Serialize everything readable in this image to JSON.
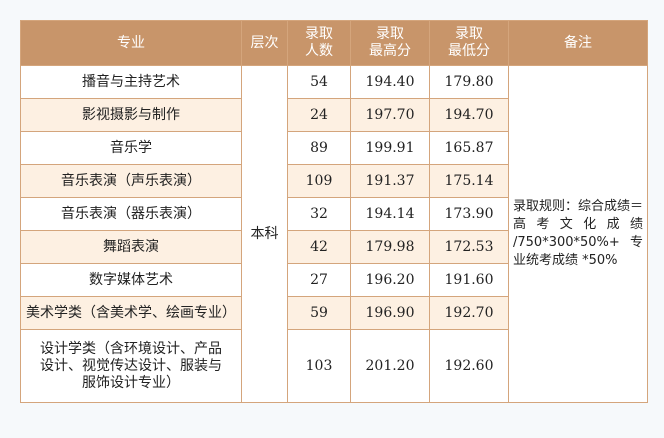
{
  "headers": [
    "专业",
    "层次",
    "录取人数",
    "录取最高分",
    "录取最低分",
    "备注"
  ],
  "header_lines": {
    "count": [
      "录取",
      "人数"
    ],
    "max": [
      "录取",
      "最高分"
    ],
    "min": [
      "录取",
      "最低分"
    ]
  },
  "level": "本科",
  "note": "录取规则：综合成绩＝高考文化成绩 /750*300*50%+专业统考成绩 *50%",
  "rows": [
    {
      "major": "播音与主持艺术",
      "count": "54",
      "max": "194.40",
      "min": "179.80"
    },
    {
      "major": "影视摄影与制作",
      "count": "24",
      "max": "197.70",
      "min": "194.70"
    },
    {
      "major": "音乐学",
      "count": "89",
      "max": "199.91",
      "min": "165.87"
    },
    {
      "major": "音乐表演（声乐表演）",
      "count": "109",
      "max": "191.37",
      "min": "175.14"
    },
    {
      "major": "音乐表演（器乐表演）",
      "count": "32",
      "max": "194.14",
      "min": "173.90"
    },
    {
      "major": "舞蹈表演",
      "count": "42",
      "max": "179.98",
      "min": "172.53"
    },
    {
      "major": "数字媒体艺术",
      "count": "27",
      "max": "196.20",
      "min": "191.60"
    },
    {
      "major": "美术学类（含美术学、绘画专业）",
      "count": "59",
      "max": "196.90",
      "min": "192.70"
    },
    {
      "major": "设计学类（含环境设计、产品设计、视觉传达设计、服装与服饰设计专业）",
      "count": "103",
      "max": "201.20",
      "min": "192.60"
    }
  ],
  "colors": {
    "header_bg": "#c8956a",
    "border": "#d4a57c",
    "alt_row": "#fdf0e2"
  }
}
